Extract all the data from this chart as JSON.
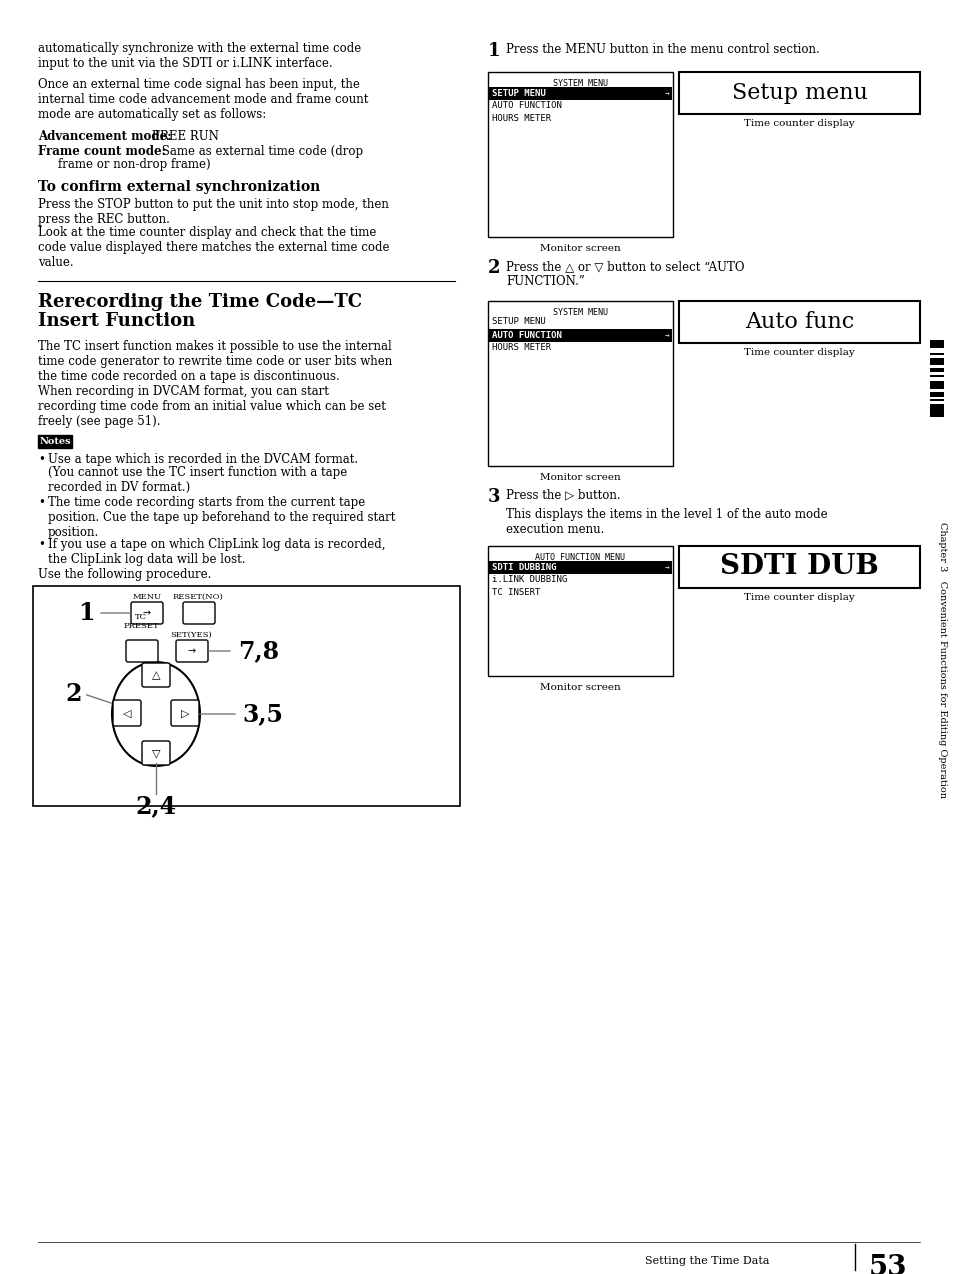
{
  "page_bg": "#ffffff",
  "page_number": "53",
  "footer_left": "Setting the Time Data",
  "chapter_side": "Chapter 3   Convenient Functions for Editing Operation",
  "para1": "automatically synchronize with the external time code\ninput to the unit via the SDTI or i.LINK interface.",
  "para2": "Once an external time code signal has been input, the\ninternal time code advancement mode and frame count\nmode are automatically set as follows:",
  "bold_line1": "Advancement mode:",
  "normal_line1": "FREE RUN",
  "bold_line2": "Frame count mode:",
  "normal_line2": "Same as external time code (drop\n    frame or non-drop frame)",
  "heading_confirm": "To confirm external synchronization",
  "para_confirm1": "Press the STOP button to put the unit into stop mode, then\npress the REC button.",
  "para_confirm2": "Look at the time counter display and check that the time\ncode value displayed there matches the external time code\nvalue.",
  "heading_rerecord1": "Rerecording the Time Code—TC",
  "heading_rerecord2": "Insert Function",
  "para_rerecord": "The TC insert function makes it possible to use the internal\ntime code generator to rewrite time code or user bits when\nthe time code recorded on a tape is discontinuous.\nWhen recording in DVCAM format, you can start\nrecording time code from an initial value which can be set\nfreely (see page 51).",
  "notes_label": "Notes",
  "note1a": "Use a tape which is recorded in the DVCAM format.",
  "note1b": "(You cannot use the TC insert function with a tape\nrecorded in DV format.)",
  "note2": "The time code recording starts from the current tape\nposition. Cue the tape up beforehand to the required start\nposition.",
  "note3": "If you use a tape on which ClipLink log data is recorded,\nthe ClipLink log data will be lost.",
  "use_following": "Use the following procedure.",
  "step1_text": "Press the MENU button in the menu control section.",
  "step2_text": "Press the △ or ▽ button to select “AUTO\nFUNCTION.”",
  "step3_text": "Press the ▷ button.",
  "step3b_text": "This displays the items in the level 1 of the auto mode\nexecution menu.",
  "menu1_title": "SYSTEM MENU",
  "menu1_items": [
    "SETUP MENU",
    "AUTO FUNCTION",
    "HOURS METER"
  ],
  "menu1_selected": 0,
  "menu1_label": "Setup menu",
  "menu1_sublabel": "Time counter display",
  "menu1_caption": "Monitor screen",
  "menu2_title": "SYSTEM MENU",
  "menu2_items": [
    "SETUP MENU",
    "AUTO FUNCTION",
    "HOURS METER"
  ],
  "menu2_selected": 1,
  "menu2_label": "Auto func",
  "menu2_sublabel": "Time counter display",
  "menu2_caption": "Monitor screen",
  "menu3_title": "AUTO FUNCTION MENU",
  "menu3_items": [
    "SDTI DUBBING",
    "i.LINK DUBBING",
    "TC INSERT"
  ],
  "menu3_selected": 0,
  "menu3_label": "SDTI DUB",
  "menu3_sublabel": "Time counter display",
  "menu3_caption": "Monitor screen"
}
